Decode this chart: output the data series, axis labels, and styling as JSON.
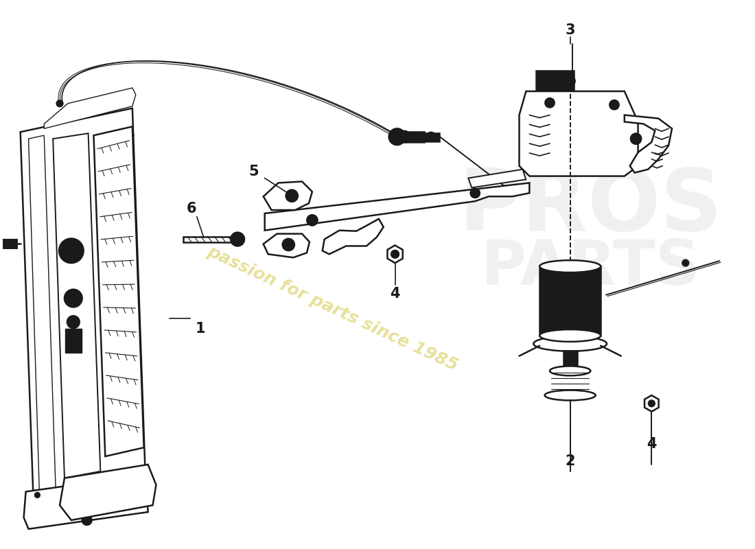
{
  "background_color": "#ffffff",
  "line_color": "#1a1a1a",
  "watermark_text": "passion for parts since 1985",
  "watermark_color": "#d4c84a",
  "watermark_alpha": 0.55,
  "figsize": [
    11.0,
    8.0
  ],
  "dpi": 100,
  "xlim": [
    0,
    1100
  ],
  "ylim": [
    0,
    800
  ],
  "label_fontsize": 15,
  "label_fontweight": "bold"
}
